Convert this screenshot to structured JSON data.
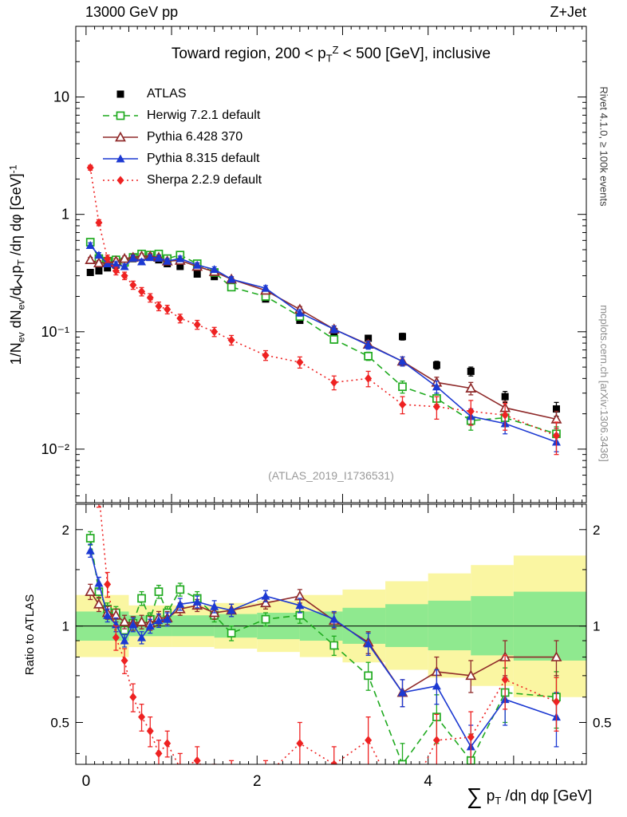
{
  "header": {
    "left": "13000 GeV pp",
    "right": "Z+Jet"
  },
  "side_notes": {
    "top": "Rivet 4.1.0, ≥ 100k events",
    "bottom": "mcplots.cern.ch [arXiv:1306.3436]"
  },
  "chart_data": {
    "type": "line",
    "title": "Toward region, 200 < p_{T}^{Z} < 500 [GeV], inclusive",
    "watermark": "(ATLAS_2019_I1736531)",
    "xlabel": "∑ p_{T} /dη dφ [GeV]",
    "ylabel": "1/N_{ev} dN_{ev}/d∑ p_{T} /dη dφ  [GeV]^{-1}",
    "legend_position": "top-left",
    "xlim": [
      -0.12,
      5.85
    ],
    "xticks": {
      "values": [
        0,
        2,
        4
      ],
      "labels": [
        "0",
        "2",
        "4"
      ]
    },
    "yticks_main": {
      "values": [
        0.01,
        0.1,
        1,
        10
      ],
      "labels": [
        "10⁻²",
        "10⁻¹",
        "1",
        "10"
      ]
    },
    "yticks_ratio": {
      "values": [
        0.5,
        1,
        2
      ],
      "labels": [
        "0.5",
        "1",
        "2"
      ],
      "minor": [
        0.4,
        0.6,
        0.7,
        0.8,
        0.9,
        1.5
      ]
    },
    "x": [
      0.05,
      0.15,
      0.25,
      0.35,
      0.45,
      0.55,
      0.65,
      0.75,
      0.85,
      0.95,
      1.1,
      1.3,
      1.5,
      1.7,
      2.1,
      2.5,
      2.9,
      3.3,
      3.7,
      4.1,
      4.5,
      4.9,
      5.5
    ],
    "panels": {
      "main": {
        "ylog": true,
        "ylim": [
          0.0035,
          40
        ],
        "series": [
          {
            "id": "atlas",
            "name": "ATLAS",
            "color": "#000000",
            "marker": "square-filled",
            "line": "none",
            "values": [
              0.32,
              0.33,
              0.35,
              0.37,
              0.4,
              0.42,
              0.43,
              0.43,
              0.41,
              0.38,
              0.36,
              0.31,
              0.295,
              0.25,
              0.19,
              0.125,
              0.1,
              0.088,
              0.091,
              0.052,
              0.046,
              0.028,
              0.022
            ],
            "errors": [
              0.016,
              0.016,
              0.017,
              0.018,
              0.02,
              0.021,
              0.021,
              0.021,
              0.02,
              0.019,
              0.018,
              0.016,
              0.015,
              0.013,
              0.01,
              0.007,
              0.006,
              0.005,
              0.006,
              0.004,
              0.004,
              0.003,
              0.003
            ]
          },
          {
            "id": "herwig",
            "name": "Herwig 7.2.1 default",
            "color": "#1faa1f",
            "marker": "square-open",
            "line": "dashed",
            "values": [
              0.58,
              0.42,
              0.4,
              0.41,
              0.39,
              0.43,
              0.46,
              0.45,
              0.46,
              0.42,
              0.45,
              0.38,
              0.32,
              0.24,
              0.2,
              0.135,
              0.086,
              0.062,
              0.034,
              0.027,
              0.0175,
              0.0185,
              0.0135
            ],
            "errors": [
              0.03,
              0.021,
              0.02,
              0.02,
              0.02,
              0.021,
              0.022,
              0.022,
              0.022,
              0.021,
              0.02,
              0.018,
              0.016,
              0.012,
              0.01,
              0.008,
              0.006,
              0.005,
              0.004,
              0.003,
              0.003,
              0.003,
              0.002
            ]
          },
          {
            "id": "pythia6",
            "name": "Pythia 6.428 370",
            "color": "#8f2a2a",
            "marker": "triangle-open",
            "line": "solid",
            "values": [
              0.41,
              0.385,
              0.385,
              0.4,
              0.42,
              0.43,
              0.44,
              0.44,
              0.43,
              0.4,
              0.405,
              0.36,
              0.325,
              0.28,
              0.225,
              0.155,
              0.105,
              0.078,
              0.056,
              0.037,
              0.033,
              0.0225,
              0.018
            ],
            "errors": [
              0.02,
              0.019,
              0.019,
              0.02,
              0.021,
              0.021,
              0.022,
              0.022,
              0.021,
              0.02,
              0.02,
              0.018,
              0.016,
              0.014,
              0.011,
              0.009,
              0.007,
              0.006,
              0.005,
              0.004,
              0.004,
              0.003,
              0.003
            ]
          },
          {
            "id": "pythia8",
            "name": "Pythia 8.315 default",
            "color": "#1c39d2",
            "marker": "triangle-filled",
            "line": "solid",
            "values": [
              0.545,
              0.45,
              0.38,
              0.375,
              0.36,
              0.425,
              0.395,
              0.43,
              0.425,
              0.4,
              0.42,
              0.37,
              0.34,
              0.28,
              0.235,
              0.145,
              0.105,
              0.077,
              0.056,
              0.034,
              0.019,
              0.0165,
              0.0115
            ],
            "errors": [
              0.027,
              0.022,
              0.019,
              0.019,
              0.018,
              0.021,
              0.02,
              0.021,
              0.021,
              0.02,
              0.021,
              0.018,
              0.017,
              0.014,
              0.012,
              0.009,
              0.007,
              0.006,
              0.005,
              0.004,
              0.003,
              0.003,
              0.002
            ]
          },
          {
            "id": "sherpa",
            "name": "Sherpa 2.2.9 default",
            "color": "#ee2222",
            "marker": "diamond-filled",
            "line": "dotted",
            "values": [
              2.5,
              0.85,
              0.42,
              0.33,
              0.3,
              0.25,
              0.22,
              0.195,
              0.165,
              0.155,
              0.13,
              0.115,
              0.1,
              0.085,
              0.063,
              0.055,
              0.037,
              0.04,
              0.024,
              0.023,
              0.021,
              0.0195,
              0.013
            ],
            "errors": [
              0.12,
              0.05,
              0.03,
              0.025,
              0.022,
              0.02,
              0.018,
              0.016,
              0.014,
              0.013,
              0.011,
              0.01,
              0.009,
              0.008,
              0.006,
              0.006,
              0.005,
              0.006,
              0.004,
              0.005,
              0.005,
              0.005,
              0.004
            ]
          }
        ]
      },
      "ratio": {
        "ylabel": "Ratio to ATLAS",
        "ylog": true,
        "ylim": [
          0.37,
          2.4
        ],
        "reference": 1,
        "bands": {
          "edges": [
            -0.12,
            0.5,
            1.0,
            1.5,
            2.0,
            2.5,
            3.0,
            3.5,
            4.0,
            4.5,
            5.0,
            5.85
          ],
          "yellow_lo": [
            0.8,
            0.86,
            0.86,
            0.85,
            0.83,
            0.8,
            0.77,
            0.73,
            0.69,
            0.65,
            0.6
          ],
          "yellow_hi": [
            1.25,
            1.16,
            1.16,
            1.18,
            1.2,
            1.25,
            1.3,
            1.38,
            1.46,
            1.55,
            1.66
          ],
          "green_lo": [
            0.9,
            0.93,
            0.93,
            0.92,
            0.91,
            0.9,
            0.88,
            0.86,
            0.84,
            0.81,
            0.78
          ],
          "green_hi": [
            1.11,
            1.08,
            1.08,
            1.09,
            1.1,
            1.11,
            1.14,
            1.17,
            1.2,
            1.24,
            1.28
          ],
          "yellow_color": "#faf6a2",
          "green_color": "#8fe98f"
        },
        "series": [
          {
            "id": "herwig",
            "name": "Herwig 7.2.1 default",
            "color": "#1faa1f",
            "marker": "square-open",
            "line": "dashed",
            "values": [
              1.88,
              1.28,
              1.13,
              1.1,
              0.97,
              1.02,
              1.22,
              1.05,
              1.28,
              1.1,
              1.3,
              1.22,
              1.08,
              0.95,
              1.05,
              1.08,
              0.87,
              0.7,
              0.37,
              0.52,
              0.38,
              0.62,
              0.6
            ],
            "errors": [
              0.09,
              0.06,
              0.05,
              0.05,
              0.05,
              0.05,
              0.06,
              0.05,
              0.06,
              0.05,
              0.06,
              0.06,
              0.05,
              0.05,
              0.05,
              0.06,
              0.06,
              0.07,
              0.06,
              0.09,
              0.08,
              0.12,
              0.12
            ]
          },
          {
            "id": "pythia6",
            "name": "Pythia 6.428 370",
            "color": "#8f2a2a",
            "marker": "triangle-open",
            "line": "solid",
            "values": [
              1.28,
              1.17,
              1.1,
              1.08,
              1.03,
              1.02,
              1.03,
              1.02,
              1.06,
              1.06,
              1.13,
              1.16,
              1.1,
              1.12,
              1.18,
              1.24,
              1.04,
              0.89,
              0.62,
              0.72,
              0.7,
              0.8,
              0.8
            ],
            "errors": [
              0.07,
              0.06,
              0.05,
              0.05,
              0.05,
              0.05,
              0.05,
              0.05,
              0.05,
              0.05,
              0.05,
              0.05,
              0.05,
              0.05,
              0.05,
              0.06,
              0.06,
              0.07,
              0.06,
              0.08,
              0.08,
              0.1,
              0.1
            ]
          },
          {
            "id": "pythia8",
            "name": "Pythia 8.315 default",
            "color": "#1c39d2",
            "marker": "triangle-filled",
            "line": "solid",
            "values": [
              1.72,
              1.36,
              1.08,
              1.01,
              0.9,
              1.01,
              0.92,
              1.0,
              1.04,
              1.05,
              1.17,
              1.19,
              1.15,
              1.12,
              1.24,
              1.16,
              1.05,
              0.88,
              0.62,
              0.65,
              0.42,
              0.59,
              0.52
            ],
            "errors": [
              0.08,
              0.06,
              0.05,
              0.05,
              0.04,
              0.05,
              0.04,
              0.05,
              0.05,
              0.05,
              0.05,
              0.05,
              0.05,
              0.05,
              0.05,
              0.06,
              0.06,
              0.07,
              0.06,
              0.08,
              0.07,
              0.1,
              0.1
            ]
          },
          {
            "id": "sherpa",
            "name": "Sherpa 2.2.9 default",
            "color": "#ee2222",
            "marker": "diamond-filled",
            "line": "dotted",
            "values": [
              6.0,
              2.6,
              1.35,
              0.92,
              0.78,
              0.6,
              0.52,
              0.47,
              0.4,
              0.43,
              0.36,
              0.38,
              0.33,
              0.34,
              0.34,
              0.43,
              0.37,
              0.44,
              0.27,
              0.44,
              0.45,
              0.68,
              0.58
            ],
            "errors": [
              0.6,
              0.25,
              0.12,
              0.08,
              0.07,
              0.06,
              0.05,
              0.05,
              0.04,
              0.04,
              0.04,
              0.04,
              0.04,
              0.04,
              0.04,
              0.07,
              0.05,
              0.08,
              0.05,
              0.09,
              0.09,
              0.13,
              0.11
            ]
          }
        ]
      }
    }
  }
}
